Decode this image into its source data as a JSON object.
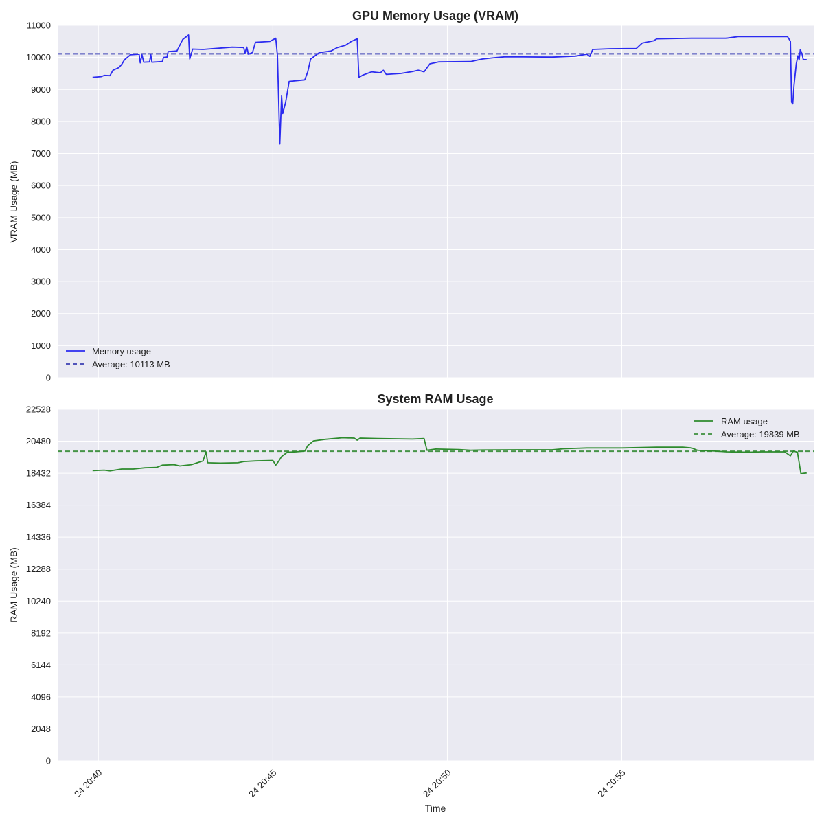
{
  "chart_data": [
    {
      "type": "line",
      "title": "GPU Memory Usage (VRAM)",
      "xlabel": "",
      "ylabel": "VRAM Usage (MB)",
      "ylim": [
        0,
        11000
      ],
      "yticks": [
        0,
        1000,
        2000,
        3000,
        4000,
        5000,
        6000,
        7000,
        8000,
        9000,
        10000,
        11000
      ],
      "xlim": [
        "24 20:38:50",
        "24 21:00:30"
      ],
      "grid": true,
      "legend_position": "lower-left",
      "average": {
        "label": "Average: 10113 MB",
        "value": 10113,
        "color": "#3a3fb3",
        "style": "dashed"
      },
      "series": [
        {
          "name": "Memory usage",
          "color": "#2b2bf0",
          "points": [
            [
              "24 20:39:50",
              9380
            ],
            [
              "24 20:40:05",
              9400
            ],
            [
              "24 20:40:10",
              9440
            ],
            [
              "24 20:40:20",
              9430
            ],
            [
              "24 20:40:25",
              9600
            ],
            [
              "24 20:40:35",
              9680
            ],
            [
              "24 20:40:40",
              9780
            ],
            [
              "24 20:40:45",
              9930
            ],
            [
              "24 20:40:55",
              10080
            ],
            [
              "24 20:41:10",
              10100
            ],
            [
              "24 20:41:12",
              9830
            ],
            [
              "24 20:41:15",
              10080
            ],
            [
              "24 20:41:18",
              9850
            ],
            [
              "24 20:41:28",
              9860
            ],
            [
              "24 20:41:30",
              10100
            ],
            [
              "24 20:41:32",
              9850
            ],
            [
              "24 20:41:50",
              9870
            ],
            [
              "24 20:41:52",
              10000
            ],
            [
              "24 20:41:58",
              10010
            ],
            [
              "24 20:42:00",
              10180
            ],
            [
              "24 20:42:15",
              10200
            ],
            [
              "24 20:42:25",
              10560
            ],
            [
              "24 20:42:35",
              10700
            ],
            [
              "24 20:42:37",
              9950
            ],
            [
              "24 20:42:42",
              10260
            ],
            [
              "24 20:43:00",
              10250
            ],
            [
              "24 20:43:50",
              10320
            ],
            [
              "24 20:44:10",
              10310
            ],
            [
              "24 20:44:12",
              10120
            ],
            [
              "24 20:44:15",
              10330
            ],
            [
              "24 20:44:18",
              10100
            ],
            [
              "24 20:44:25",
              10150
            ],
            [
              "24 20:44:30",
              10470
            ],
            [
              "24 20:44:55",
              10500
            ],
            [
              "24 20:45:05",
              10600
            ],
            [
              "24 20:45:08",
              10050
            ],
            [
              "24 20:45:12",
              7300
            ],
            [
              "24 20:45:15",
              8800
            ],
            [
              "24 20:45:17",
              8250
            ],
            [
              "24 20:45:22",
              8600
            ],
            [
              "24 20:45:28",
              9250
            ],
            [
              "24 20:45:45",
              9280
            ],
            [
              "24 20:45:55",
              9300
            ],
            [
              "24 20:46:00",
              9550
            ],
            [
              "24 20:46:05",
              9950
            ],
            [
              "24 20:46:20",
              10150
            ],
            [
              "24 20:46:40",
              10200
            ],
            [
              "24 20:46:50",
              10300
            ],
            [
              "24 20:47:05",
              10380
            ],
            [
              "24 20:47:15",
              10500
            ],
            [
              "24 20:47:25",
              10580
            ],
            [
              "24 20:47:28",
              9380
            ],
            [
              "24 20:47:35",
              9450
            ],
            [
              "24 20:47:50",
              9550
            ],
            [
              "24 20:48:05",
              9520
            ],
            [
              "24 20:48:10",
              9600
            ],
            [
              "24 20:48:15",
              9470
            ],
            [
              "24 20:48:40",
              9500
            ],
            [
              "24 20:49:00",
              9560
            ],
            [
              "24 20:49:10",
              9600
            ],
            [
              "24 20:49:20",
              9550
            ],
            [
              "24 20:49:30",
              9800
            ],
            [
              "24 20:49:45",
              9860
            ],
            [
              "24 20:50:40",
              9870
            ],
            [
              "24 20:51:00",
              9950
            ],
            [
              "24 20:51:20",
              9990
            ],
            [
              "24 20:51:40",
              10020
            ],
            [
              "24 20:53:00",
              10010
            ],
            [
              "24 20:53:40",
              10040
            ],
            [
              "24 20:54:00",
              10100
            ],
            [
              "24 20:54:05",
              10030
            ],
            [
              "24 20:54:10",
              10250
            ],
            [
              "24 20:54:40",
              10270
            ],
            [
              "24 20:55:25",
              10280
            ],
            [
              "24 20:55:35",
              10450
            ],
            [
              "24 20:55:55",
              10520
            ],
            [
              "24 20:56:00",
              10580
            ],
            [
              "24 20:57:00",
              10600
            ],
            [
              "24 20:58:00",
              10600
            ],
            [
              "24 20:58:20",
              10650
            ],
            [
              "24 20:59:45",
              10650
            ],
            [
              "24 20:59:50",
              10500
            ],
            [
              "24 20:59:52",
              8600
            ],
            [
              "24 20:59:54",
              8550
            ],
            [
              "24 20:59:56",
              9100
            ],
            [
              "24 21:00:00",
              9800
            ],
            [
              "24 21:00:03",
              10050
            ],
            [
              "24 21:00:05",
              9920
            ],
            [
              "24 21:00:07",
              10250
            ],
            [
              "24 21:00:10",
              10100
            ],
            [
              "24 21:00:12",
              9930
            ],
            [
              "24 21:00:18",
              9930
            ]
          ]
        }
      ]
    },
    {
      "type": "line",
      "title": "System RAM Usage",
      "xlabel": "Time",
      "ylabel": "RAM Usage (MB)",
      "ylim": [
        0,
        22528
      ],
      "yticks": [
        0,
        2048,
        4096,
        6144,
        8192,
        10240,
        12288,
        14336,
        16384,
        18432,
        20480,
        22528
      ],
      "xlim": [
        "24 20:38:50",
        "24 21:00:30"
      ],
      "xticks": [
        {
          "time": "24 20:40:00",
          "label": "24 20:40"
        },
        {
          "time": "24 20:45:00",
          "label": "24 20:45"
        },
        {
          "time": "24 20:50:00",
          "label": "24 20:50"
        },
        {
          "time": "24 20:55:00",
          "label": "24 20:55"
        }
      ],
      "grid": true,
      "legend_position": "upper-right",
      "average": {
        "label": "Average: 19839 MB",
        "value": 19839,
        "color": "#3d8f3d",
        "style": "dashed"
      },
      "series": [
        {
          "name": "RAM usage",
          "color": "#2e8b2e",
          "points": [
            [
              "24 20:39:50",
              18600
            ],
            [
              "24 20:40:10",
              18630
            ],
            [
              "24 20:40:20",
              18580
            ],
            [
              "24 20:40:40",
              18700
            ],
            [
              "24 20:41:00",
              18700
            ],
            [
              "24 20:41:20",
              18780
            ],
            [
              "24 20:41:40",
              18800
            ],
            [
              "24 20:41:50",
              18950
            ],
            [
              "24 20:42:10",
              18980
            ],
            [
              "24 20:42:20",
              18900
            ],
            [
              "24 20:42:40",
              18980
            ],
            [
              "24 20:42:50",
              19100
            ],
            [
              "24 20:43:00",
              19220
            ],
            [
              "24 20:43:05",
              19800
            ],
            [
              "24 20:43:08",
              19100
            ],
            [
              "24 20:43:30",
              19080
            ],
            [
              "24 20:44:00",
              19100
            ],
            [
              "24 20:44:10",
              19180
            ],
            [
              "24 20:44:30",
              19220
            ],
            [
              "24 20:45:00",
              19250
            ],
            [
              "24 20:45:05",
              18950
            ],
            [
              "24 20:45:10",
              19200
            ],
            [
              "24 20:45:15",
              19500
            ],
            [
              "24 20:45:25",
              19780
            ],
            [
              "24 20:45:40",
              19800
            ],
            [
              "24 20:45:55",
              19850
            ],
            [
              "24 20:46:00",
              20200
            ],
            [
              "24 20:46:10",
              20500
            ],
            [
              "24 20:46:30",
              20600
            ],
            [
              "24 20:47:00",
              20700
            ],
            [
              "24 20:47:20",
              20680
            ],
            [
              "24 20:47:25",
              20550
            ],
            [
              "24 20:47:30",
              20680
            ],
            [
              "24 20:48:00",
              20650
            ],
            [
              "24 20:49:00",
              20620
            ],
            [
              "24 20:49:20",
              20650
            ],
            [
              "24 20:49:25",
              19900
            ],
            [
              "24 20:49:40",
              19980
            ],
            [
              "24 20:50:20",
              19950
            ],
            [
              "24 20:50:40",
              19900
            ],
            [
              "24 20:51:00",
              19920
            ],
            [
              "24 20:52:00",
              19930
            ],
            [
              "24 20:53:00",
              19930
            ],
            [
              "24 20:53:20",
              20000
            ],
            [
              "24 20:54:00",
              20050
            ],
            [
              "24 20:55:00",
              20050
            ],
            [
              "24 20:56:00",
              20100
            ],
            [
              "24 20:56:45",
              20100
            ],
            [
              "24 20:57:00",
              20050
            ],
            [
              "24 20:57:10",
              19900
            ],
            [
              "24 20:57:40",
              19850
            ],
            [
              "24 20:58:00",
              19800
            ],
            [
              "24 20:58:40",
              19780
            ],
            [
              "24 20:59:00",
              19800
            ],
            [
              "24 20:59:40",
              19800
            ],
            [
              "24 20:59:50",
              19550
            ],
            [
              "24 20:59:55",
              19850
            ],
            [
              "24 21:00:02",
              19780
            ],
            [
              "24 21:00:08",
              18400
            ],
            [
              "24 21:00:18",
              18450
            ]
          ]
        }
      ]
    }
  ]
}
